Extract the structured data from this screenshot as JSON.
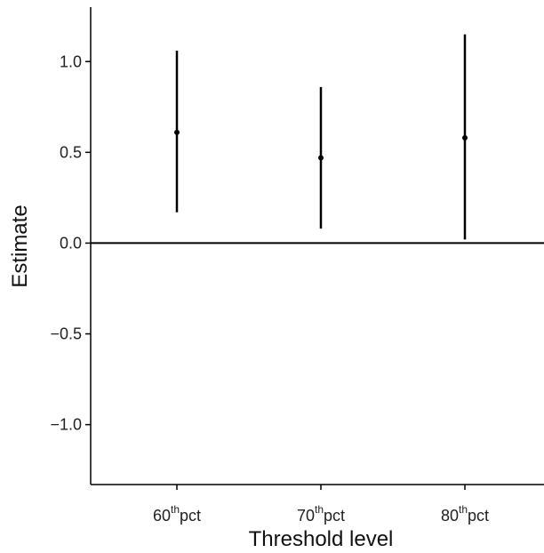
{
  "chart_data": {
    "type": "scatter",
    "title": "",
    "xlabel": "Threshold level",
    "ylabel": "Estimate",
    "categories": [
      {
        "base": "60",
        "sup": "th",
        "suffix": "pct"
      },
      {
        "base": "70",
        "sup": "th",
        "suffix": "pct"
      },
      {
        "base": "80",
        "sup": "th",
        "suffix": "pct"
      }
    ],
    "series": [
      {
        "points": [
          {
            "category": "60th pct",
            "estimate": 0.61,
            "lower": 0.17,
            "upper": 1.06
          },
          {
            "category": "70th pct",
            "estimate": 0.47,
            "lower": 0.08,
            "upper": 0.86
          },
          {
            "category": "80th pct",
            "estimate": 0.58,
            "lower": 0.02,
            "upper": 1.15
          }
        ]
      }
    ],
    "yticks": [
      {
        "value": 1.0,
        "label": "1.0"
      },
      {
        "value": 0.5,
        "label": "0.5"
      },
      {
        "value": 0.0,
        "label": "0.0"
      },
      {
        "value": -0.5,
        "label": "−0.5"
      },
      {
        "value": -1.0,
        "label": "−1.0"
      }
    ],
    "ylim": [
      -1.33,
      1.3
    ],
    "reference_line": 0,
    "grid": false,
    "colors": {
      "marks": "#000000",
      "axis": "#000000",
      "text": "#222222"
    }
  }
}
